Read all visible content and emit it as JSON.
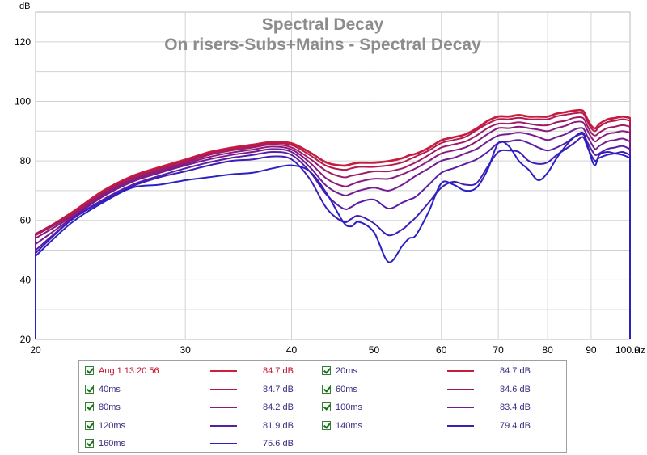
{
  "chart_data": {
    "type": "line",
    "title": "Spectral Decay",
    "subtitle": "On risers-Subs+Mains - Spectral Decay",
    "ylabel": "dB",
    "xunit": "Hz",
    "xscale": "log",
    "xlim": [
      20,
      100
    ],
    "ylim": [
      20,
      130
    ],
    "yticks": [
      20,
      40,
      60,
      80,
      100,
      120
    ],
    "xticks": [
      "20",
      "30",
      "40",
      "50",
      "60",
      "70",
      "80",
      "90",
      "100.0"
    ],
    "grid": true,
    "x": [
      20,
      22,
      24,
      26,
      28,
      30,
      32,
      34,
      36,
      38,
      40,
      42,
      44,
      46,
      47,
      48,
      50,
      52,
      54,
      55,
      56,
      58,
      60,
      62,
      64,
      66,
      68,
      70,
      72,
      74,
      76,
      78,
      80,
      82,
      84,
      86,
      88,
      89,
      90,
      91,
      92,
      94,
      96,
      98,
      100
    ],
    "series": [
      {
        "name": "Aug 1 13:20:56",
        "color": "#cc1f3a",
        "legend_value": "84.7 dB",
        "values": [
          55,
          62.5,
          70,
          75,
          78,
          80.5,
          83,
          84.5,
          85.5,
          86.5,
          86,
          83,
          79.5,
          78.5,
          79,
          79.5,
          79.5,
          80,
          81,
          82,
          82.5,
          84.5,
          87,
          88,
          89,
          91,
          93.5,
          95,
          95,
          95.5,
          95,
          95,
          95,
          96,
          96.5,
          97,
          97,
          94.5,
          92,
          91,
          92.5,
          94,
          94.5,
          95,
          94.5
        ]
      },
      {
        "name": "20ms",
        "color": "#c41c3f",
        "legend_value": "84.7 dB",
        "values": [
          55.3,
          62.3,
          69.8,
          74.8,
          77.8,
          80.3,
          82.8,
          84.3,
          85.3,
          86.3,
          85.8,
          82.8,
          79.3,
          78.3,
          78.8,
          79.3,
          79.3,
          79.8,
          80.8,
          81.8,
          82.3,
          84.3,
          86.8,
          87.8,
          88.8,
          90.8,
          93.3,
          94.8,
          94.8,
          95.3,
          94.8,
          94.8,
          94.8,
          95.8,
          96.3,
          96.8,
          96.8,
          94.3,
          91.8,
          90.8,
          92.3,
          93.8,
          94.3,
          94.8,
          94.3
        ]
      },
      {
        "name": "40ms",
        "color": "#b31a52",
        "legend_value": "84.7 dB",
        "values": [
          55.5,
          62,
          69.5,
          74.5,
          77.5,
          80,
          82.5,
          84,
          85,
          86,
          85.3,
          82,
          78.3,
          77,
          77.5,
          78,
          78,
          78.5,
          79.5,
          80.5,
          81.5,
          83.5,
          86,
          87,
          88,
          90.3,
          92.5,
          94,
          94,
          94.5,
          94,
          94,
          94,
          95,
          95.5,
          96,
          96,
          93.5,
          91,
          90,
          91.5,
          93,
          93.5,
          94,
          93.5
        ]
      },
      {
        "name": "60ms",
        "color": "#a01a66",
        "legend_value": "84.6 dB",
        "values": [
          55,
          61.5,
          69,
          74,
          77,
          79.5,
          82,
          83.5,
          84.5,
          85.5,
          84.5,
          80.8,
          76.5,
          74.5,
          75,
          75.5,
          76.5,
          76.5,
          77.5,
          78.5,
          79.5,
          82,
          84.5,
          85.5,
          86.5,
          88.5,
          91,
          92.5,
          92.5,
          93,
          92.5,
          92,
          92,
          93,
          93.5,
          94.5,
          94.5,
          92,
          89.5,
          88.5,
          89.5,
          91,
          91.5,
          92,
          91.5
        ]
      },
      {
        "name": "80ms",
        "color": "#8a1a7c",
        "legend_value": "84.2 dB",
        "values": [
          54,
          61,
          68.5,
          73.5,
          76.5,
          79,
          81.3,
          82.8,
          83.8,
          84.8,
          83.8,
          79.5,
          74,
          71.5,
          72,
          73,
          74,
          74,
          75.5,
          76.5,
          77.5,
          80,
          82.5,
          83.5,
          84.5,
          86.5,
          89,
          91,
          91,
          91.5,
          91,
          90.5,
          90,
          91,
          91.8,
          93,
          93,
          90.5,
          88,
          86.5,
          87.5,
          89,
          89.5,
          90,
          89.5
        ]
      },
      {
        "name": "100ms",
        "color": "#731c90",
        "legend_value": "83.4 dB",
        "values": [
          52,
          60.5,
          68,
          73,
          76,
          78.5,
          80.5,
          82,
          83,
          84,
          83,
          78,
          71.5,
          68.5,
          69,
          70,
          71,
          70,
          72,
          73.5,
          75,
          77.5,
          80,
          81,
          82.5,
          84,
          86.5,
          88.5,
          89,
          89.5,
          89,
          88,
          87,
          88,
          89,
          90.5,
          91,
          88.5,
          86,
          84,
          85,
          86.5,
          87,
          87.5,
          86.5
        ]
      },
      {
        "name": "120ms",
        "color": "#5a1ea4",
        "legend_value": "81.9 dB",
        "values": [
          50,
          60,
          67,
          72,
          75,
          77.5,
          79.5,
          81,
          82,
          83,
          82,
          76.5,
          68.5,
          64,
          64.5,
          66,
          67,
          64,
          66,
          67,
          68,
          72,
          76,
          77.5,
          79,
          80.5,
          83,
          86,
          86.5,
          87,
          86,
          84.5,
          83.5,
          84.5,
          86,
          88,
          89,
          86.5,
          84,
          82,
          82.5,
          84,
          84.5,
          85,
          84
        ]
      },
      {
        "name": "140ms",
        "color": "#3f1eb6",
        "legend_value": "79.4 dB",
        "values": [
          49,
          60,
          66.5,
          71.5,
          74.5,
          76.5,
          78.5,
          80,
          80.5,
          81.5,
          80.5,
          74,
          64,
          59.5,
          60.5,
          61.5,
          59,
          55,
          57,
          59,
          61,
          66,
          71,
          73,
          72,
          72.5,
          78,
          83,
          83.5,
          83,
          80,
          79,
          79.5,
          82,
          84,
          86,
          88,
          85,
          82,
          80,
          81,
          82,
          82.5,
          83,
          82
        ]
      },
      {
        "name": "160ms",
        "color": "#2a20c4",
        "legend_value": "75.6 dB",
        "values": [
          48,
          59,
          66,
          71,
          72,
          73.5,
          74.5,
          75.5,
          76,
          77.5,
          78.5,
          76.5,
          69,
          59.5,
          58,
          59.5,
          56,
          46,
          51.5,
          54,
          55,
          63,
          72.5,
          72,
          70,
          71,
          77,
          86,
          85,
          80,
          77,
          73.5,
          76,
          81,
          85,
          88,
          89.5,
          86,
          81,
          78.5,
          82,
          83,
          82.5,
          82,
          81
        ]
      }
    ]
  },
  "legend": {
    "left": [
      {
        "label": "Aug 1 13:20:56",
        "value": "84.7 dB",
        "color": "#cc1f3a",
        "text_color": "#c0102a"
      },
      {
        "label": "40ms",
        "value": "84.7 dB",
        "color": "#b31a52",
        "text_color": "#3a2a80"
      },
      {
        "label": "80ms",
        "value": "84.2 dB",
        "color": "#8a1a7c",
        "text_color": "#3a2a80"
      },
      {
        "label": "120ms",
        "value": "81.9 dB",
        "color": "#5a1ea4",
        "text_color": "#3a2a80"
      },
      {
        "label": "160ms",
        "value": "75.6 dB",
        "color": "#2a20c4",
        "text_color": "#3a2a80"
      }
    ],
    "right": [
      {
        "label": "20ms",
        "value": "84.7 dB",
        "color": "#c41c3f",
        "text_color": "#3a2a80"
      },
      {
        "label": "60ms",
        "value": "84.6 dB",
        "color": "#a01a66",
        "text_color": "#3a2a80"
      },
      {
        "label": "100ms",
        "value": "83.4 dB",
        "color": "#731c90",
        "text_color": "#3a2a80"
      },
      {
        "label": "140ms",
        "value": "79.4 dB",
        "color": "#3f1eb6",
        "text_color": "#3a2a80"
      }
    ]
  }
}
